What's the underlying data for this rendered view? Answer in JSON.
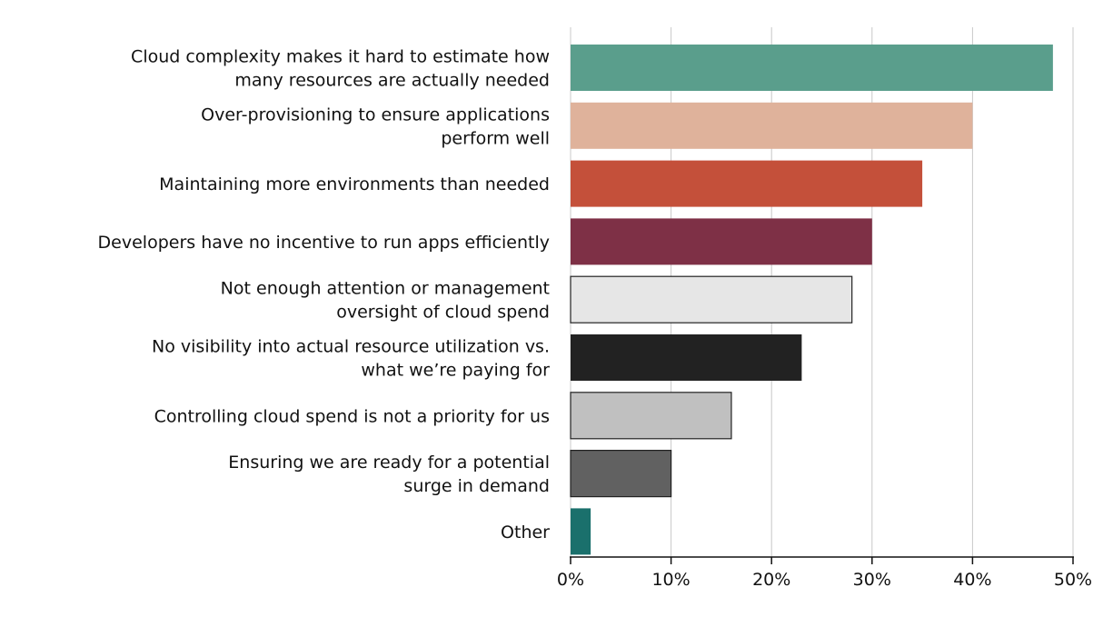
{
  "chart_data": {
    "type": "bar",
    "orientation": "horizontal",
    "title": "",
    "xlabel": "",
    "ylabel": "",
    "xlim": [
      0,
      50
    ],
    "x_ticks": [
      "0%",
      "10%",
      "20%",
      "30%",
      "40%",
      "50%"
    ],
    "grid": true,
    "categories": [
      [
        "Cloud complexity makes it hard to estimate how",
        "many resources are actually needed"
      ],
      [
        "Over-provisioning to ensure applications",
        "perform well"
      ],
      [
        "Maintaining more environments than needed"
      ],
      [
        "Developers have no incentive to run apps efficiently"
      ],
      [
        "Not enough attention or management",
        "oversight of cloud spend"
      ],
      [
        "No visibility into actual resource utilization vs.",
        "what we’re paying for"
      ],
      [
        "Controlling cloud spend is not a priority for us"
      ],
      [
        "Ensuring we are ready for a potential",
        "surge in demand"
      ],
      [
        "Other"
      ]
    ],
    "values": [
      48,
      40,
      35,
      30,
      28,
      23,
      16,
      10,
      2
    ],
    "colors": [
      "#5a9e8c",
      "#dfb29b",
      "#c4503a",
      "#7e3046",
      "#e6e6e6",
      "#222222",
      "#c0c0c0",
      "#616161",
      "#1a706c"
    ],
    "outlined": [
      false,
      false,
      false,
      false,
      true,
      false,
      true,
      true,
      false
    ]
  }
}
